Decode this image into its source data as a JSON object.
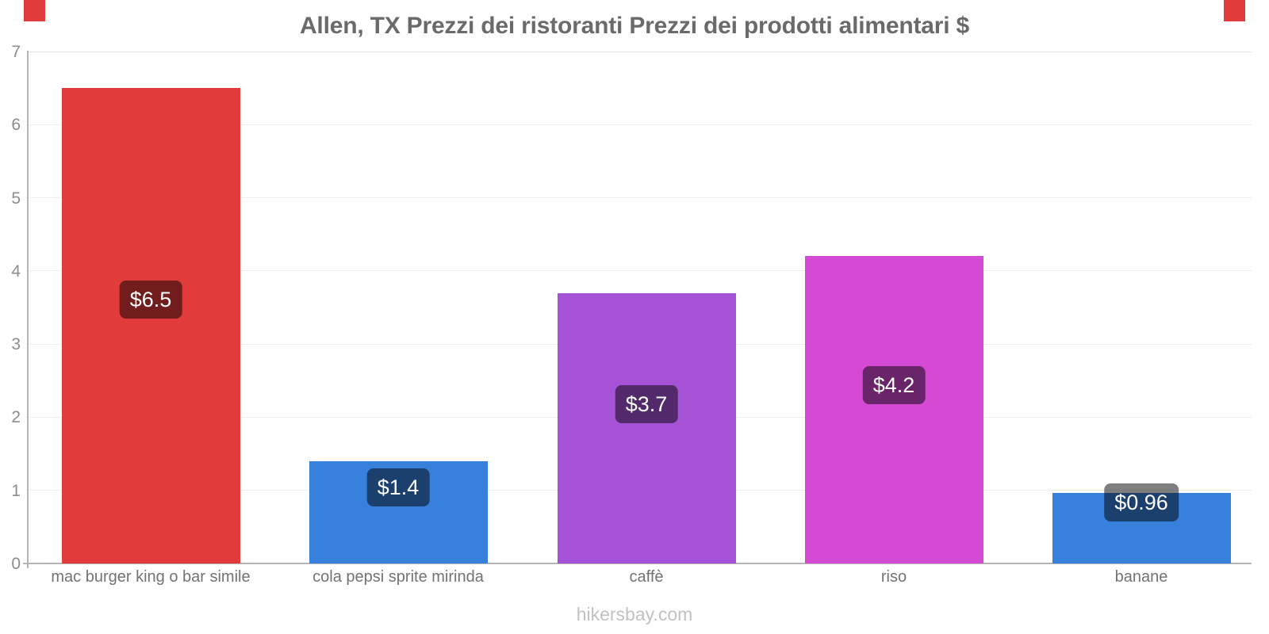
{
  "page": {
    "title": "Allen, TX Prezzi dei ristoranti Prezzi dei prodotti alimentari $",
    "watermark": "hikersbay.com"
  },
  "chart_data": {
    "type": "bar",
    "title": "Allen, TX Prezzi dei ristoranti Prezzi dei prodotti alimentari $",
    "categories": [
      "mac burger king o bar simile",
      "cola pepsi sprite mirinda",
      "caffè",
      "riso",
      "banane"
    ],
    "values": [
      6.5,
      1.4,
      3.7,
      4.2,
      0.96
    ],
    "value_labels": [
      "$6.5",
      "$1.4",
      "$3.7",
      "$4.2",
      "$0.96"
    ],
    "bar_colors": [
      "#e23b3b",
      "#3781dd",
      "#a552d6",
      "#d44ad4",
      "#3781dd"
    ],
    "currency": "$",
    "xlabel": "",
    "ylabel": "",
    "ylim": [
      0,
      7
    ],
    "yticks": [
      0,
      1,
      2,
      3,
      4,
      5,
      6,
      7
    ],
    "grid": true,
    "legend_position": "none",
    "value_badge_bg": "rgba(0,0,0,0.5)",
    "value_badge_text_color": "#ffffff",
    "accent_color": "#e23b3b",
    "axis_color": "#b5b5b5",
    "gridline_color": "#efefef",
    "text_colors": {
      "title": "#6a6a6a",
      "tick_labels": "#8c8c8c",
      "category_labels": "#737373",
      "watermark": "#c2c2c2"
    }
  }
}
